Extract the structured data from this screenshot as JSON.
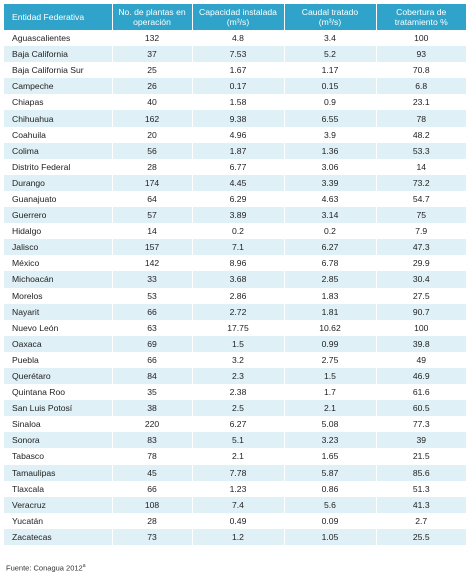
{
  "headers": {
    "entity": "Entidad Federativa",
    "plants": "No. de plantas en operación",
    "capacity_pre": "Capacidad instalada",
    "capacity_unit": "(m³/s)",
    "flow_pre": "Caudal tratado",
    "flow_unit": "(m³/s)",
    "coverage_line1": "Cobertura de",
    "coverage_line2": "tratamiento %"
  },
  "rows": [
    {
      "entidad": "Aguascalientes",
      "plantas": "132",
      "capacidad": "4.8",
      "caudal": "3.4",
      "cobertura": "100"
    },
    {
      "entidad": "Baja California",
      "plantas": "37",
      "capacidad": "7.53",
      "caudal": "5.2",
      "cobertura": "93"
    },
    {
      "entidad": "Baja California Sur",
      "plantas": "25",
      "capacidad": "1.67",
      "caudal": "1.17",
      "cobertura": "70.8"
    },
    {
      "entidad": "Campeche",
      "plantas": "26",
      "capacidad": "0.17",
      "caudal": "0.15",
      "cobertura": "6.8"
    },
    {
      "entidad": "Chiapas",
      "plantas": "40",
      "capacidad": "1.58",
      "caudal": "0.9",
      "cobertura": "23.1"
    },
    {
      "entidad": "Chihuahua",
      "plantas": "162",
      "capacidad": "9.38",
      "caudal": "6.55",
      "cobertura": "78"
    },
    {
      "entidad": "Coahuila",
      "plantas": "20",
      "capacidad": "4.96",
      "caudal": "3.9",
      "cobertura": "48.2"
    },
    {
      "entidad": "Colima",
      "plantas": "56",
      "capacidad": "1.87",
      "caudal": "1.36",
      "cobertura": "53.3"
    },
    {
      "entidad": "Distrito Federal",
      "plantas": "28",
      "capacidad": "6.77",
      "caudal": "3.06",
      "cobertura": "14"
    },
    {
      "entidad": "Durango",
      "plantas": "174",
      "capacidad": "4.45",
      "caudal": "3.39",
      "cobertura": "73.2"
    },
    {
      "entidad": "Guanajuato",
      "plantas": "64",
      "capacidad": "6.29",
      "caudal": "4.63",
      "cobertura": "54.7"
    },
    {
      "entidad": "Guerrero",
      "plantas": "57",
      "capacidad": "3.89",
      "caudal": "3.14",
      "cobertura": "75"
    },
    {
      "entidad": "Hidalgo",
      "plantas": "14",
      "capacidad": "0.2",
      "caudal": "0.2",
      "cobertura": "7.9"
    },
    {
      "entidad": "Jalisco",
      "plantas": "157",
      "capacidad": "7.1",
      "caudal": "6.27",
      "cobertura": "47.3"
    },
    {
      "entidad": "México",
      "plantas": "142",
      "capacidad": "8.96",
      "caudal": "6.78",
      "cobertura": "29.9"
    },
    {
      "entidad": "Michoacán",
      "plantas": "33",
      "capacidad": "3.68",
      "caudal": "2.85",
      "cobertura": "30.4"
    },
    {
      "entidad": "Morelos",
      "plantas": "53",
      "capacidad": "2.86",
      "caudal": "1.83",
      "cobertura": "27.5"
    },
    {
      "entidad": "Nayarit",
      "plantas": "66",
      "capacidad": "2.72",
      "caudal": "1.81",
      "cobertura": "90.7"
    },
    {
      "entidad": "Nuevo León",
      "plantas": "63",
      "capacidad": "17.75",
      "caudal": "10.62",
      "cobertura": "100"
    },
    {
      "entidad": "Oaxaca",
      "plantas": "69",
      "capacidad": "1.5",
      "caudal": "0.99",
      "cobertura": "39.8"
    },
    {
      "entidad": "Puebla",
      "plantas": "66",
      "capacidad": "3.2",
      "caudal": "2.75",
      "cobertura": "49"
    },
    {
      "entidad": "Querétaro",
      "plantas": "84",
      "capacidad": "2.3",
      "caudal": "1.5",
      "cobertura": "46.9"
    },
    {
      "entidad": "Quintana Roo",
      "plantas": "35",
      "capacidad": "2.38",
      "caudal": "1.7",
      "cobertura": "61.6"
    },
    {
      "entidad": "San Luis Potosí",
      "plantas": "38",
      "capacidad": "2.5",
      "caudal": "2.1",
      "cobertura": "60.5"
    },
    {
      "entidad": "Sinaloa",
      "plantas": "220",
      "capacidad": "6.27",
      "caudal": "5.08",
      "cobertura": "77.3"
    },
    {
      "entidad": "Sonora",
      "plantas": "83",
      "capacidad": "5.1",
      "caudal": "3.23",
      "cobertura": "39"
    },
    {
      "entidad": "Tabasco",
      "plantas": "78",
      "capacidad": "2.1",
      "caudal": "1.65",
      "cobertura": "21.5"
    },
    {
      "entidad": "Tamaulipas",
      "plantas": "45",
      "capacidad": "7.78",
      "caudal": "5.87",
      "cobertura": "85.6"
    },
    {
      "entidad": "Tlaxcala",
      "plantas": "66",
      "capacidad": "1.23",
      "caudal": "0.86",
      "cobertura": "51.3"
    },
    {
      "entidad": "Veracruz",
      "plantas": "108",
      "capacidad": "7.4",
      "caudal": "5.6",
      "cobertura": "41.3"
    },
    {
      "entidad": "Yucatán",
      "plantas": "28",
      "capacidad": "0.49",
      "caudal": "0.09",
      "cobertura": "2.7"
    },
    {
      "entidad": "Zacatecas",
      "plantas": "73",
      "capacidad": "1.2",
      "caudal": "1.05",
      "cobertura": "25.5"
    }
  ],
  "source_text": "Fuente: Conagua 2012",
  "source_mark": "a",
  "colors": {
    "header_bg": "#2fa3c9",
    "stripe": "#dff0f7"
  }
}
